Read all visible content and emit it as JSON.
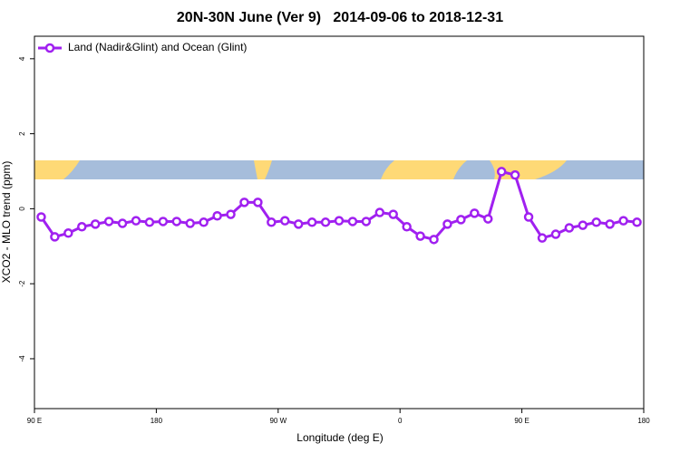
{
  "chart_data": {
    "type": "line",
    "title": "20N-30N June (Ver 9)   2014-09-06 to 2018-12-31",
    "xlabel": "Longitude (deg E)",
    "ylabel": "XCO2 - MLO trend (ppm)",
    "legend_position": "top-left",
    "x": [
      95,
      105,
      115,
      125,
      135,
      145,
      155,
      165,
      175,
      185,
      195,
      205,
      215,
      225,
      235,
      245,
      255,
      265,
      275,
      285,
      295,
      305,
      315,
      325,
      335,
      345,
      355,
      365,
      375,
      385,
      395,
      405,
      415,
      425,
      435,
      445,
      455,
      465,
      475,
      485,
      495,
      505,
      515,
      525,
      535
    ],
    "series": [
      {
        "name": "Land (Nadir&Glint) and Ocean (Glint)",
        "color": "#a020f0",
        "values": [
          -0.22,
          -0.75,
          -0.65,
          -0.48,
          -0.41,
          -0.34,
          -0.39,
          -0.32,
          -0.36,
          -0.34,
          -0.34,
          -0.39,
          -0.36,
          -0.19,
          -0.15,
          0.17,
          0.17,
          -0.36,
          -0.32,
          -0.41,
          -0.36,
          -0.36,
          -0.32,
          -0.34,
          -0.34,
          -0.1,
          -0.15,
          -0.48,
          -0.73,
          -0.82,
          -0.41,
          -0.29,
          -0.12,
          -0.27,
          0.99,
          0.9,
          -0.22,
          -0.78,
          -0.68,
          -0.51,
          -0.44,
          -0.36,
          -0.41,
          -0.32,
          -0.36
        ]
      }
    ],
    "xlim": [
      90,
      540
    ],
    "xticks": [
      {
        "value": 90,
        "label": "90 E"
      },
      180,
      {
        "value": 270,
        "label": "90 W"
      },
      {
        "value": 360,
        "label": "0"
      },
      {
        "value": 450,
        "label": "90 E"
      },
      {
        "value": 540,
        "label": "180"
      }
    ],
    "ylim": [
      -5.33,
      4.6
    ],
    "yticks": [
      -4,
      -2,
      0,
      2,
      4
    ]
  }
}
